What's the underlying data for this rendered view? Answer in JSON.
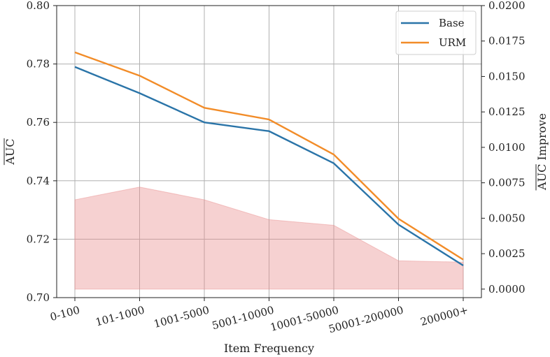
{
  "chart_data": {
    "type": "line",
    "categories": [
      "0-100",
      "101-1000",
      "1001-5000",
      "5001-10000",
      "10001-50000",
      "50001-200000",
      "200000+"
    ],
    "series": [
      {
        "name": "Base",
        "axis": "left",
        "color": "#2a74a8",
        "values": [
          0.779,
          0.77,
          0.76,
          0.757,
          0.746,
          0.725,
          0.711
        ]
      },
      {
        "name": "URM",
        "axis": "left",
        "color": "#f28c28",
        "values": [
          0.784,
          0.776,
          0.765,
          0.761,
          0.749,
          0.727,
          0.713
        ]
      }
    ],
    "area": {
      "axis": "right",
      "color": "#e88c8c",
      "values": [
        0.0063,
        0.0072,
        0.0063,
        0.0049,
        0.0045,
        0.002,
        0.0019
      ]
    },
    "xlabel": "Item Frequency",
    "ylabel_left": "AUC",
    "ylabel_right_main": "AUC",
    "ylabel_right_suffix": " Improve",
    "ylim_left": [
      0.7,
      0.8
    ],
    "ylim_right": [
      -0.0006,
      0.02
    ],
    "yticks_left": [
      "0.70",
      "0.72",
      "0.74",
      "0.76",
      "0.78",
      "0.80"
    ],
    "yticks_right": [
      "0.0000",
      "0.0025",
      "0.0050",
      "0.0075",
      "0.0100",
      "0.0125",
      "0.0150",
      "0.0175",
      "0.0200"
    ],
    "grid": true,
    "legend_position": "top-right"
  }
}
